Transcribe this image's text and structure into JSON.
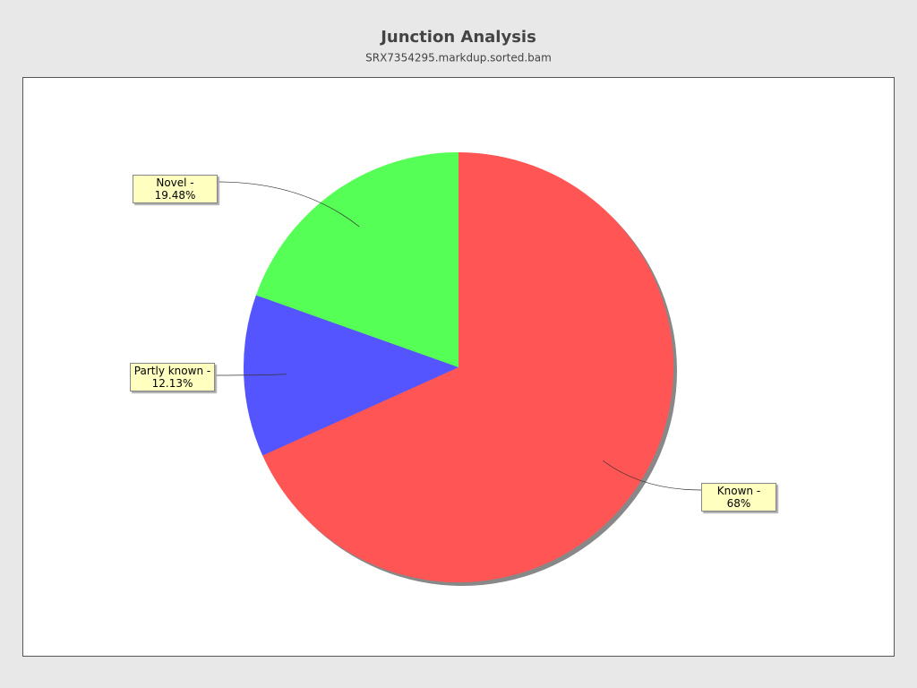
{
  "chart_data": {
    "type": "pie",
    "title": "Junction Analysis",
    "subtitle": "SRX7354295.markdup.sorted.bam",
    "values": [
      68,
      12.13,
      19.48
    ],
    "value_labels": [
      "Known - 68%",
      "Partly known - 12.13%",
      "Novel - 19.48%"
    ],
    "colors": [
      "#ff5555",
      "#5555ff",
      "#55ff55"
    ]
  }
}
